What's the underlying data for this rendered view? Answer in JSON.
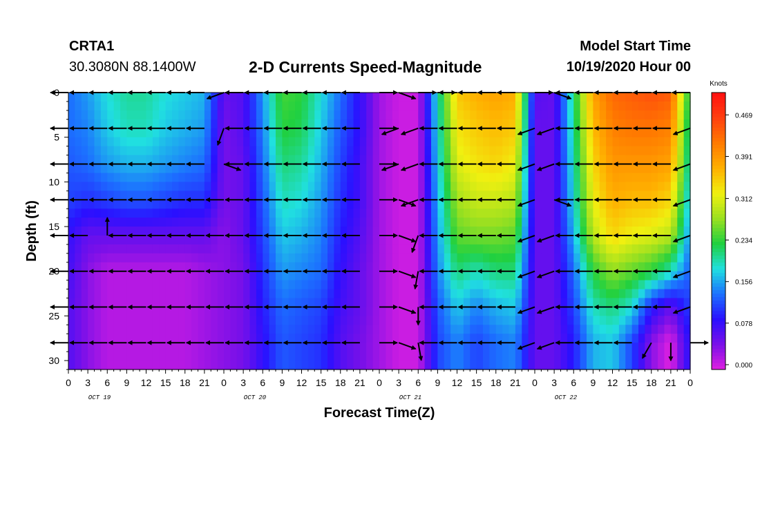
{
  "header": {
    "station": "CRTA1",
    "coords": "30.3080N 88.1400W",
    "title": "2-D Currents Speed-Magnitude",
    "start_label": "Model Start Time",
    "start_value": "10/19/2020 Hour 00"
  },
  "chart_data": {
    "type": "heatmap",
    "title": "2-D Currents Speed-Magnitude",
    "xlabel": "Forecast Time(Z)",
    "ylabel": "Depth (ft)",
    "xlim": [
      0,
      96
    ],
    "ylim": [
      0,
      31
    ],
    "x_ticks": [
      "0",
      "3",
      "6",
      "9",
      "12",
      "15",
      "18",
      "21",
      "0",
      "3",
      "6",
      "9",
      "12",
      "15",
      "18",
      "21",
      "0",
      "3",
      "6",
      "9",
      "12",
      "15",
      "18",
      "21",
      "0",
      "3",
      "6",
      "9",
      "12",
      "15",
      "18",
      "21",
      "0"
    ],
    "y_ticks": [
      "0",
      "5",
      "10",
      "15",
      "20",
      "25",
      "30"
    ],
    "day_labels": [
      "OCT 19",
      "OCT 20",
      "OCT 21",
      "OCT 22"
    ],
    "colorbar": {
      "label": "Knots",
      "ticks": [
        "0.000",
        "0.078",
        "0.156",
        "0.234",
        "0.312",
        "0.391",
        "0.469"
      ],
      "min": 0,
      "max": 0.52,
      "stops": [
        "#e020e0",
        "#7a10e8",
        "#2a10ff",
        "#1c70ff",
        "#20e0e0",
        "#20d040",
        "#9ae020",
        "#f0f010",
        "#ffb000",
        "#ff7a00",
        "#ff4010",
        "#ff1010"
      ]
    },
    "x_hours": [
      0,
      3,
      6,
      9,
      12,
      15,
      18,
      21,
      24,
      27,
      30,
      33,
      36,
      39,
      42,
      45,
      48,
      51,
      54,
      57,
      60,
      63,
      66,
      69,
      72,
      75,
      78,
      81,
      84,
      87,
      90,
      93,
      96
    ],
    "depths_ft": [
      0,
      4,
      8,
      12,
      16,
      20,
      24,
      28
    ],
    "speed_knots": [
      [
        0.14,
        0.16,
        0.19,
        0.21,
        0.21,
        0.19,
        0.18,
        0.17,
        0.06,
        0.07,
        0.16,
        0.25,
        0.24,
        0.19,
        0.14,
        0.09,
        0.03,
        0.01,
        0.01,
        0.2,
        0.36,
        0.38,
        0.39,
        0.38,
        0.07,
        0.06,
        0.22,
        0.39,
        0.44,
        0.45,
        0.46,
        0.45,
        0.22
      ],
      [
        0.14,
        0.15,
        0.18,
        0.2,
        0.2,
        0.18,
        0.17,
        0.16,
        0.05,
        0.07,
        0.15,
        0.24,
        0.23,
        0.18,
        0.13,
        0.09,
        0.03,
        0.01,
        0.01,
        0.19,
        0.34,
        0.36,
        0.37,
        0.36,
        0.06,
        0.06,
        0.21,
        0.37,
        0.42,
        0.43,
        0.43,
        0.42,
        0.2
      ],
      [
        0.13,
        0.14,
        0.16,
        0.17,
        0.17,
        0.16,
        0.15,
        0.14,
        0.05,
        0.06,
        0.14,
        0.22,
        0.21,
        0.17,
        0.12,
        0.08,
        0.03,
        0.01,
        0.01,
        0.18,
        0.32,
        0.34,
        0.35,
        0.33,
        0.06,
        0.06,
        0.2,
        0.35,
        0.4,
        0.4,
        0.4,
        0.39,
        0.19
      ],
      [
        0.12,
        0.11,
        0.12,
        0.13,
        0.13,
        0.12,
        0.11,
        0.11,
        0.05,
        0.06,
        0.13,
        0.2,
        0.19,
        0.16,
        0.11,
        0.08,
        0.03,
        0.01,
        0.01,
        0.17,
        0.29,
        0.31,
        0.31,
        0.3,
        0.06,
        0.06,
        0.19,
        0.33,
        0.38,
        0.37,
        0.37,
        0.35,
        0.17
      ],
      [
        0.09,
        0.06,
        0.06,
        0.06,
        0.06,
        0.06,
        0.06,
        0.06,
        0.04,
        0.06,
        0.12,
        0.18,
        0.17,
        0.15,
        0.1,
        0.07,
        0.03,
        0.01,
        0.01,
        0.16,
        0.26,
        0.27,
        0.27,
        0.26,
        0.06,
        0.06,
        0.17,
        0.3,
        0.35,
        0.33,
        0.32,
        0.3,
        0.15
      ],
      [
        0.08,
        0.04,
        0.02,
        0.02,
        0.02,
        0.02,
        0.02,
        0.03,
        0.04,
        0.05,
        0.11,
        0.16,
        0.15,
        0.14,
        0.09,
        0.06,
        0.03,
        0.01,
        0.01,
        0.15,
        0.22,
        0.2,
        0.22,
        0.22,
        0.06,
        0.06,
        0.14,
        0.24,
        0.28,
        0.26,
        0.24,
        0.2,
        0.13
      ],
      [
        0.07,
        0.04,
        0.02,
        0.02,
        0.02,
        0.02,
        0.02,
        0.03,
        0.04,
        0.05,
        0.1,
        0.14,
        0.13,
        0.12,
        0.08,
        0.06,
        0.03,
        0.01,
        0.01,
        0.13,
        0.18,
        0.15,
        0.17,
        0.18,
        0.06,
        0.06,
        0.12,
        0.2,
        0.22,
        0.19,
        0.1,
        0.06,
        0.12
      ],
      [
        0.07,
        0.04,
        0.02,
        0.02,
        0.02,
        0.02,
        0.02,
        0.03,
        0.04,
        0.05,
        0.09,
        0.13,
        0.12,
        0.11,
        0.07,
        0.05,
        0.03,
        0.01,
        0.01,
        0.12,
        0.15,
        0.12,
        0.14,
        0.15,
        0.06,
        0.06,
        0.1,
        0.17,
        0.18,
        0.12,
        0.04,
        0.0,
        0.1
      ]
    ],
    "vector_hours": [
      0,
      3,
      6,
      9,
      12,
      15,
      18,
      21,
      24,
      27,
      30,
      33,
      36,
      39,
      42,
      45,
      48,
      51,
      54,
      57,
      60,
      63,
      66,
      69,
      72,
      75,
      78,
      81,
      84,
      87,
      90,
      93,
      96
    ],
    "vector_dirs_deg": [
      [
        180,
        180,
        180,
        180,
        180,
        180,
        180,
        180,
        200,
        180,
        180,
        180,
        180,
        180,
        180,
        180,
        0,
        340,
        0,
        0,
        180,
        180,
        180,
        180,
        0,
        340,
        180,
        180,
        180,
        180,
        180,
        180,
        180
      ],
      [
        180,
        180,
        180,
        180,
        180,
        180,
        180,
        180,
        250,
        180,
        180,
        180,
        180,
        180,
        180,
        180,
        0,
        200,
        200,
        180,
        180,
        180,
        180,
        180,
        200,
        200,
        180,
        180,
        180,
        180,
        180,
        180,
        200
      ],
      [
        180,
        180,
        180,
        180,
        180,
        180,
        180,
        180,
        340,
        180,
        180,
        180,
        180,
        180,
        180,
        180,
        0,
        200,
        200,
        180,
        180,
        180,
        180,
        180,
        200,
        200,
        180,
        180,
        180,
        180,
        180,
        180,
        200
      ],
      [
        180,
        180,
        180,
        180,
        180,
        180,
        180,
        180,
        180,
        180,
        180,
        180,
        180,
        180,
        180,
        180,
        0,
        340,
        200,
        180,
        180,
        180,
        180,
        180,
        200,
        340,
        180,
        180,
        180,
        180,
        180,
        180,
        200
      ],
      [
        180,
        180,
        90,
        180,
        180,
        180,
        180,
        180,
        180,
        180,
        180,
        180,
        180,
        180,
        180,
        180,
        0,
        340,
        250,
        180,
        180,
        180,
        180,
        180,
        200,
        200,
        180,
        180,
        180,
        180,
        180,
        180,
        200
      ],
      [
        180,
        180,
        180,
        180,
        180,
        180,
        180,
        180,
        180,
        180,
        180,
        180,
        180,
        180,
        180,
        180,
        0,
        340,
        260,
        180,
        180,
        180,
        180,
        180,
        200,
        200,
        180,
        180,
        180,
        180,
        180,
        180,
        200
      ],
      [
        180,
        180,
        180,
        180,
        180,
        180,
        180,
        180,
        180,
        180,
        180,
        180,
        180,
        180,
        180,
        180,
        0,
        340,
        270,
        180,
        180,
        180,
        180,
        180,
        200,
        200,
        180,
        180,
        180,
        180,
        180,
        180,
        200
      ],
      [
        180,
        180,
        180,
        180,
        180,
        180,
        180,
        180,
        180,
        180,
        180,
        180,
        180,
        180,
        180,
        180,
        0,
        340,
        280,
        180,
        180,
        180,
        180,
        180,
        200,
        200,
        180,
        180,
        180,
        180,
        240,
        270,
        0
      ]
    ]
  }
}
